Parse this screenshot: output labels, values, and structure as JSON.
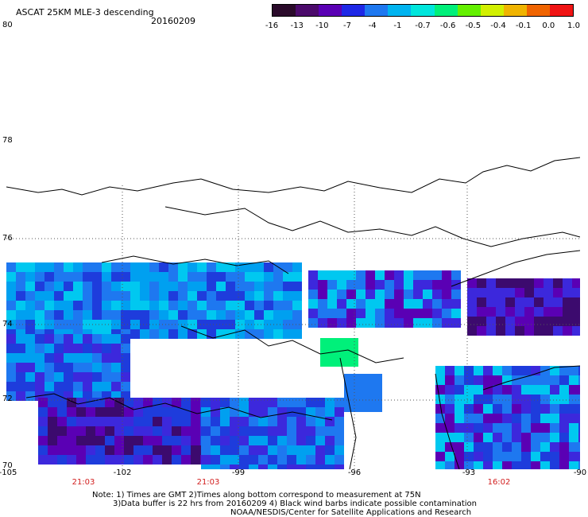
{
  "header": {
    "title": "ASCAT 25KM MLE-3 descending",
    "date": "20160209"
  },
  "colorbar": {
    "labels": [
      "-16",
      "-13",
      "-10",
      "-7",
      "-4",
      "-1",
      "-0.7",
      "-0.6",
      "-0.5",
      "-0.4",
      "-0.1",
      "0.0",
      "1.0"
    ],
    "colors": [
      "#2a0a2a",
      "#4b0a6b",
      "#5a00b4",
      "#1e28e6",
      "#1e78f0",
      "#00b4f0",
      "#00e6dc",
      "#00f07a",
      "#64f000",
      "#d2f000",
      "#f0b400",
      "#f06400",
      "#f01414"
    ]
  },
  "axes": {
    "lat_labels": [
      "80",
      "78",
      "76",
      "74",
      "72",
      "70"
    ],
    "lon_labels": [
      "-105",
      "-102",
      "-99",
      "-96",
      "-93",
      "-90"
    ]
  },
  "times": [
    {
      "label": "21:03",
      "color": "#d21e1e"
    },
    {
      "label": "21:03",
      "color": "#d21e1e"
    },
    {
      "label": "16:02",
      "color": "#d21e1e"
    }
  ],
  "notes": {
    "line1": "Note: 1) Times are GMT 2)Times along bottom correspond to measurement at 75N",
    "line2": "3)Data buffer is 22 hrs from 20160209 4) Black wind barbs indicate possible contamination",
    "line3": "NOAA/NESDIS/Center for Satellite Applications and Research"
  }
}
